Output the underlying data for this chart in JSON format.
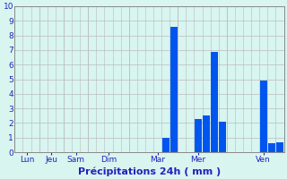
{
  "title": "",
  "xlabel": "Précipitations 24h ( mm )",
  "background_color": "#d8f5f0",
  "bar_color": "#0055ee",
  "grid_color": "#bbbbbb",
  "ylim": [
    0,
    10
  ],
  "yticks": [
    0,
    1,
    2,
    3,
    4,
    5,
    6,
    7,
    8,
    9,
    10
  ],
  "day_labels": [
    "Lun",
    "Jeu",
    "Sam",
    "Dim",
    "Mar",
    "Mer",
    "Ven"
  ],
  "day_tick_positions": [
    1,
    4,
    7,
    11,
    17,
    22,
    30
  ],
  "day_vline_positions": [
    2.5,
    5.5,
    8.5,
    13.5,
    19.5,
    25.5
  ],
  "num_bars": 33,
  "bar_values": [
    0,
    0,
    0,
    0,
    0,
    0,
    0,
    0,
    0,
    0,
    0,
    0,
    0,
    0,
    0,
    0,
    0,
    0,
    1.0,
    8.6,
    0,
    0,
    2.3,
    2.5,
    6.9,
    2.1,
    0,
    0,
    0,
    0,
    4.9,
    0.6,
    0.7
  ],
  "xlabel_fontsize": 8,
  "tick_fontsize": 6.5,
  "label_color": "#2222bb",
  "spine_color": "#888888",
  "figsize": [
    3.2,
    2.0
  ],
  "dpi": 100
}
